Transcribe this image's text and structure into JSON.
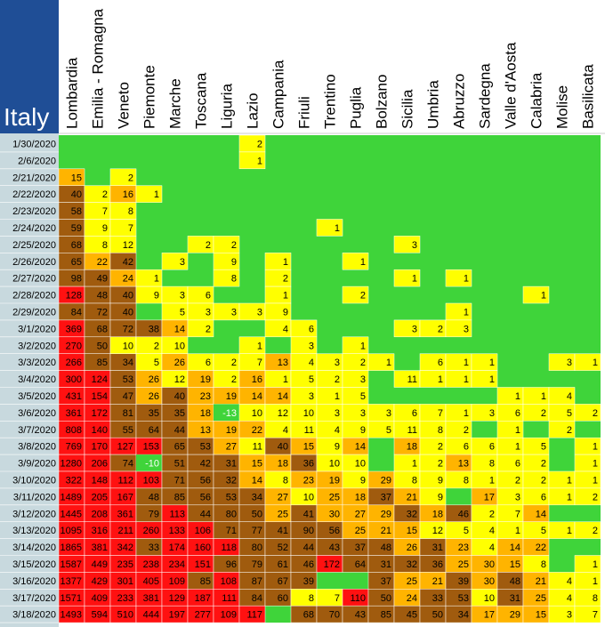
{
  "title": "Italy",
  "colors": {
    "title_bg": "#1f4e96",
    "date_bg": "#c8d9de",
    "zero": "#3fd43a",
    "low": "#ffff00",
    "mid": "#ffb400",
    "high": "#a05b0e",
    "top": "#ff1111"
  },
  "chart_data": {
    "type": "table",
    "title": "Italy",
    "regions": [
      "Lombardia",
      "Emilia - Romagna",
      "Veneto",
      "Piemonte",
      "Marche",
      "Toscana",
      "Liguria",
      "Lazio",
      "Campania",
      "Friuli",
      "Trentino",
      "Puglia",
      "Bolzano",
      "Sicilia",
      "Umbria",
      "Abruzzo",
      "Sardegna",
      "Valle d'Aosta",
      "Calabria",
      "Molise",
      "Basilicata"
    ],
    "dates": [
      "1/30/2020",
      "2/6/2020",
      "2/21/2020",
      "2/22/2020",
      "2/23/2020",
      "2/24/2020",
      "2/25/2020",
      "2/26/2020",
      "2/27/2020",
      "2/28/2020",
      "2/29/2020",
      "3/1/2020",
      "3/2/2020",
      "3/3/2020",
      "3/4/2020",
      "3/5/2020",
      "3/6/2020",
      "3/7/2020",
      "3/8/2020",
      "3/9/2020",
      "3/10/2020",
      "3/11/2020",
      "3/12/2020",
      "3/13/2020",
      "3/14/2020",
      "3/15/2020",
      "3/16/2020",
      "3/17/2020",
      "3/18/2020"
    ],
    "values": [
      [
        null,
        null,
        null,
        null,
        null,
        null,
        null,
        2,
        null,
        null,
        null,
        null,
        null,
        null,
        null,
        null,
        null,
        null,
        null,
        null,
        null
      ],
      [
        null,
        null,
        null,
        null,
        null,
        null,
        null,
        1,
        null,
        null,
        null,
        null,
        null,
        null,
        null,
        null,
        null,
        null,
        null,
        null,
        null
      ],
      [
        15,
        null,
        2,
        null,
        null,
        null,
        null,
        null,
        null,
        null,
        null,
        null,
        null,
        null,
        null,
        null,
        null,
        null,
        null,
        null,
        null
      ],
      [
        40,
        2,
        16,
        1,
        null,
        null,
        null,
        null,
        null,
        null,
        null,
        null,
        null,
        null,
        null,
        null,
        null,
        null,
        null,
        null,
        null
      ],
      [
        58,
        7,
        8,
        null,
        null,
        null,
        null,
        null,
        null,
        null,
        null,
        null,
        null,
        null,
        null,
        null,
        null,
        null,
        null,
        null,
        null
      ],
      [
        59,
        9,
        7,
        null,
        null,
        null,
        null,
        null,
        null,
        null,
        1,
        null,
        null,
        null,
        null,
        null,
        null,
        null,
        null,
        null,
        null
      ],
      [
        68,
        8,
        12,
        null,
        null,
        2,
        2,
        null,
        null,
        null,
        null,
        null,
        null,
        3,
        null,
        null,
        null,
        null,
        null,
        null,
        null
      ],
      [
        65,
        22,
        42,
        null,
        3,
        null,
        9,
        null,
        1,
        null,
        null,
        1,
        null,
        null,
        null,
        null,
        null,
        null,
        null,
        null,
        null
      ],
      [
        98,
        49,
        24,
        1,
        null,
        null,
        8,
        null,
        2,
        null,
        null,
        null,
        null,
        1,
        null,
        1,
        null,
        null,
        null,
        null,
        null
      ],
      [
        128,
        48,
        40,
        9,
        3,
        6,
        null,
        null,
        1,
        null,
        null,
        2,
        null,
        null,
        null,
        null,
        null,
        null,
        1,
        null,
        null
      ],
      [
        84,
        72,
        40,
        null,
        5,
        3,
        3,
        3,
        9,
        null,
        null,
        null,
        null,
        null,
        null,
        1,
        null,
        null,
        null,
        null,
        null
      ],
      [
        369,
        68,
        72,
        38,
        14,
        2,
        null,
        null,
        4,
        6,
        null,
        null,
        null,
        3,
        2,
        3,
        null,
        null,
        null,
        null,
        null
      ],
      [
        270,
        50,
        10,
        2,
        10,
        null,
        null,
        1,
        null,
        3,
        null,
        1,
        null,
        null,
        null,
        null,
        null,
        null,
        null,
        null,
        null
      ],
      [
        266,
        85,
        34,
        5,
        26,
        6,
        2,
        7,
        13,
        4,
        3,
        2,
        1,
        null,
        6,
        1,
        1,
        null,
        null,
        3,
        1
      ],
      [
        300,
        124,
        53,
        26,
        12,
        19,
        2,
        16,
        1,
        5,
        2,
        3,
        null,
        11,
        1,
        1,
        1,
        null,
        null,
        null,
        null
      ],
      [
        431,
        154,
        47,
        26,
        40,
        23,
        19,
        14,
        14,
        3,
        1,
        5,
        null,
        null,
        null,
        null,
        null,
        1,
        1,
        4,
        null
      ],
      [
        361,
        172,
        81,
        35,
        35,
        18,
        -13,
        10,
        12,
        10,
        3,
        3,
        3,
        6,
        7,
        1,
        3,
        6,
        2,
        5,
        2
      ],
      [
        808,
        140,
        55,
        64,
        44,
        13,
        19,
        22,
        4,
        11,
        4,
        9,
        5,
        11,
        8,
        2,
        null,
        1,
        null,
        2,
        null
      ],
      [
        769,
        170,
        127,
        153,
        65,
        53,
        27,
        11,
        40,
        15,
        9,
        14,
        null,
        18,
        2,
        6,
        6,
        1,
        5,
        null,
        1
      ],
      [
        1280,
        206,
        74,
        -10,
        51,
        42,
        31,
        15,
        18,
        36,
        10,
        10,
        null,
        1,
        2,
        13,
        8,
        6,
        2,
        null,
        1
      ],
      [
        322,
        148,
        112,
        103,
        71,
        56,
        32,
        14,
        8,
        23,
        19,
        9,
        29,
        8,
        9,
        8,
        1,
        2,
        2,
        1,
        1
      ],
      [
        1489,
        205,
        167,
        48,
        85,
        56,
        53,
        34,
        27,
        10,
        25,
        18,
        37,
        21,
        9,
        null,
        17,
        3,
        6,
        1,
        2
      ],
      [
        1445,
        208,
        361,
        79,
        113,
        44,
        80,
        50,
        25,
        41,
        30,
        27,
        29,
        32,
        18,
        46,
        2,
        7,
        14,
        null,
        null
      ],
      [
        1095,
        316,
        211,
        260,
        133,
        106,
        71,
        77,
        41,
        90,
        56,
        25,
        21,
        15,
        12,
        5,
        4,
        1,
        5,
        1,
        2
      ],
      [
        1865,
        381,
        342,
        33,
        174,
        160,
        118,
        80,
        52,
        44,
        43,
        37,
        48,
        26,
        31,
        23,
        4,
        14,
        22,
        null,
        null
      ],
      [
        1587,
        449,
        235,
        238,
        234,
        151,
        96,
        79,
        61,
        46,
        172,
        64,
        31,
        32,
        36,
        25,
        30,
        15,
        8,
        null,
        1
      ],
      [
        1377,
        429,
        301,
        405,
        109,
        85,
        108,
        87,
        67,
        39,
        null,
        null,
        37,
        25,
        21,
        39,
        30,
        48,
        21,
        4,
        1
      ],
      [
        1571,
        409,
        233,
        381,
        129,
        187,
        111,
        84,
        60,
        8,
        7,
        110,
        50,
        24,
        33,
        53,
        10,
        31,
        25,
        4,
        8
      ],
      [
        1493,
        594,
        510,
        444,
        197,
        277,
        109,
        117,
        null,
        68,
        70,
        43,
        85,
        45,
        50,
        34,
        17,
        29,
        15,
        3,
        7
      ]
    ]
  }
}
